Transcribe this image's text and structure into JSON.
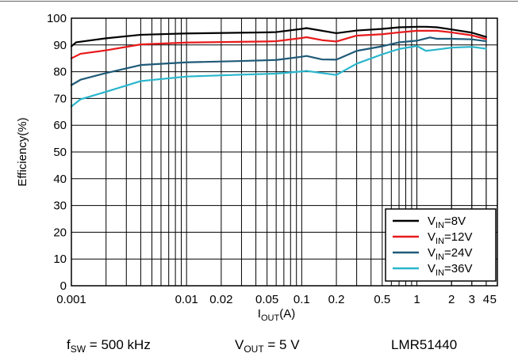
{
  "chart_data": {
    "type": "line",
    "title": "",
    "xlabel": {
      "main": "I",
      "sub": "OUT",
      "tail": "(A)"
    },
    "ylabel": "Efficiency(%)",
    "xscale": "log",
    "xlim": [
      0.001,
      5
    ],
    "ylim": [
      0,
      100
    ],
    "grid": true,
    "legend_position": "bottom-right",
    "x_ticks": [
      {
        "value": 0.001,
        "label": "0.001"
      },
      {
        "value": 0.01,
        "label": "0.01"
      },
      {
        "value": 0.02,
        "label": "0.02"
      },
      {
        "value": 0.05,
        "label": "0.05"
      },
      {
        "value": 0.1,
        "label": "0.1"
      },
      {
        "value": 0.2,
        "label": "0.2"
      },
      {
        "value": 0.5,
        "label": "0.5"
      },
      {
        "value": 1,
        "label": "1"
      },
      {
        "value": 2,
        "label": "2"
      },
      {
        "value": 3,
        "label": "3"
      },
      {
        "value": 4,
        "label": "4"
      },
      {
        "value": 5,
        "label": "5"
      }
    ],
    "y_ticks": [
      0,
      10,
      20,
      30,
      40,
      50,
      60,
      70,
      80,
      90,
      100
    ],
    "series": [
      {
        "name": "VIN=8V",
        "label": {
          "main": "V",
          "sub": "IN",
          "tail": "=8V"
        },
        "color": "#000000",
        "points": [
          [
            0.001,
            89.5
          ],
          [
            0.0011,
            91
          ],
          [
            0.002,
            92.5
          ],
          [
            0.004,
            93.8
          ],
          [
            0.01,
            94.3
          ],
          [
            0.05,
            94.7
          ],
          [
            0.06,
            94.8
          ],
          [
            0.1,
            96
          ],
          [
            0.11,
            96.3
          ],
          [
            0.2,
            94.4
          ],
          [
            0.3,
            95.4
          ],
          [
            0.5,
            96
          ],
          [
            0.7,
            96.6
          ],
          [
            1,
            96.8
          ],
          [
            1.2,
            96.8
          ],
          [
            1.5,
            96.6
          ],
          [
            2,
            95.8
          ],
          [
            3,
            94.6
          ],
          [
            4,
            93
          ]
        ]
      },
      {
        "name": "VIN=12V",
        "label": {
          "main": "V",
          "sub": "IN",
          "tail": "=12V"
        },
        "color": "#e8191a",
        "points": [
          [
            0.001,
            85
          ],
          [
            0.0012,
            86.7
          ],
          [
            0.002,
            88
          ],
          [
            0.004,
            90.2
          ],
          [
            0.01,
            90.9
          ],
          [
            0.05,
            91.3
          ],
          [
            0.06,
            91.4
          ],
          [
            0.1,
            92.6
          ],
          [
            0.11,
            92.9
          ],
          [
            0.15,
            91.8
          ],
          [
            0.2,
            91.3
          ],
          [
            0.3,
            93.5
          ],
          [
            0.5,
            94
          ],
          [
            0.7,
            94.7
          ],
          [
            1,
            95.3
          ],
          [
            1.3,
            95.3
          ],
          [
            1.5,
            95.3
          ],
          [
            2,
            94.7
          ],
          [
            3,
            93.6
          ],
          [
            4,
            92.2
          ]
        ]
      },
      {
        "name": "VIN=24V",
        "label": {
          "main": "V",
          "sub": "IN",
          "tail": "=24V"
        },
        "color": "#1f5a78",
        "points": [
          [
            0.001,
            75
          ],
          [
            0.0012,
            77
          ],
          [
            0.002,
            79.5
          ],
          [
            0.004,
            82.5
          ],
          [
            0.01,
            83.5
          ],
          [
            0.03,
            84
          ],
          [
            0.06,
            84.4
          ],
          [
            0.1,
            85.6
          ],
          [
            0.11,
            85.9
          ],
          [
            0.15,
            84.6
          ],
          [
            0.2,
            84.5
          ],
          [
            0.3,
            87.8
          ],
          [
            0.5,
            89.5
          ],
          [
            0.7,
            91
          ],
          [
            1,
            91.6
          ],
          [
            1.3,
            92.8
          ],
          [
            1.5,
            92.3
          ],
          [
            2,
            92.3
          ],
          [
            3,
            92.1
          ],
          [
            4,
            91.4
          ]
        ]
      },
      {
        "name": "VIN=36V",
        "label": {
          "main": "V",
          "sub": "IN",
          "tail": "=36V"
        },
        "color": "#29b6cc",
        "points": [
          [
            0.001,
            67
          ],
          [
            0.0012,
            69.7
          ],
          [
            0.002,
            72.5
          ],
          [
            0.004,
            76.5
          ],
          [
            0.01,
            78.2
          ],
          [
            0.03,
            78.9
          ],
          [
            0.06,
            79.3
          ],
          [
            0.1,
            80.1
          ],
          [
            0.11,
            80.3
          ],
          [
            0.15,
            79.5
          ],
          [
            0.2,
            78.8
          ],
          [
            0.3,
            83
          ],
          [
            0.5,
            86.5
          ],
          [
            0.7,
            88.5
          ],
          [
            1,
            89.6
          ],
          [
            1.2,
            87.8
          ],
          [
            1.5,
            88.3
          ],
          [
            2,
            89
          ],
          [
            3,
            89.3
          ],
          [
            4,
            88.6
          ]
        ]
      }
    ]
  },
  "footer": {
    "fsw": {
      "main": "f",
      "sub": "SW",
      "tail": " = 500 kHz"
    },
    "vout": {
      "main": "V",
      "sub": "OUT",
      "tail": " = 5 V"
    },
    "part": "LMR51440"
  }
}
